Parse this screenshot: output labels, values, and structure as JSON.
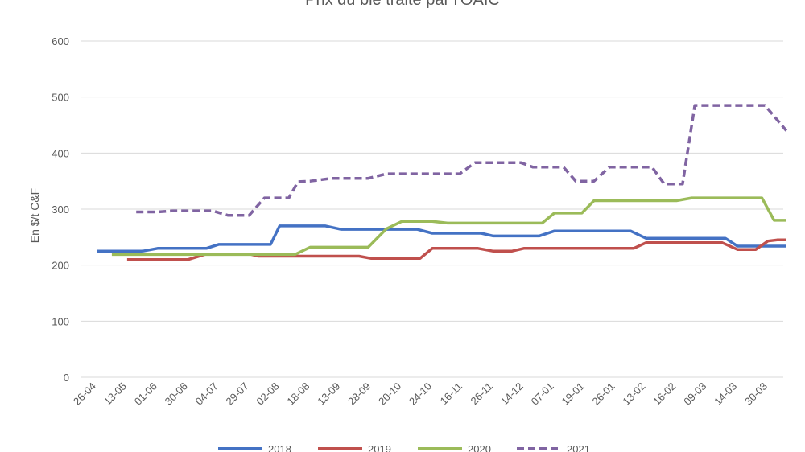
{
  "chart_data": {
    "type": "line",
    "title": "Prix du blé traité par l'OAIC",
    "xlabel": "",
    "ylabel": "En $/t C&F",
    "ylim": [
      0,
      600
    ],
    "yticks": [
      0,
      100,
      200,
      300,
      400,
      500,
      600
    ],
    "grid": true,
    "legend_position": "bottom",
    "categories": [
      "26-04",
      "13-05",
      "01-06",
      "30-06",
      "04-07",
      "29-07",
      "02-08",
      "18-08",
      "13-09",
      "28-09",
      "20-10",
      "24-10",
      "16-11",
      "26-11",
      "14-12",
      "07-01",
      "19-01",
      "26-01",
      "13-02",
      "16-02",
      "09-03",
      "14-03",
      "30-03"
    ],
    "series": [
      {
        "name": "2018",
        "color": "#4472C4",
        "dashed": false,
        "points": [
          [
            0,
            225
          ],
          [
            1.5,
            225
          ],
          [
            2,
            230
          ],
          [
            3.6,
            230
          ],
          [
            4,
            237
          ],
          [
            5.7,
            237
          ],
          [
            6,
            270
          ],
          [
            7.5,
            270
          ],
          [
            8,
            264
          ],
          [
            10.5,
            264
          ],
          [
            11,
            257
          ],
          [
            12.6,
            257
          ],
          [
            13,
            252
          ],
          [
            14.5,
            252
          ],
          [
            15,
            261
          ],
          [
            17.5,
            261
          ],
          [
            18,
            248
          ],
          [
            20.6,
            248
          ],
          [
            21,
            234
          ],
          [
            22.6,
            234
          ]
        ]
      },
      {
        "name": "2019",
        "color": "#C0504D",
        "dashed": false,
        "points": [
          [
            1,
            210
          ],
          [
            3,
            210
          ],
          [
            3.6,
            220
          ],
          [
            5,
            220
          ],
          [
            5.3,
            216
          ],
          [
            8.6,
            216
          ],
          [
            9,
            212
          ],
          [
            10.6,
            212
          ],
          [
            11,
            230
          ],
          [
            12.5,
            230
          ],
          [
            13,
            225
          ],
          [
            13.6,
            225
          ],
          [
            14,
            230
          ],
          [
            17.6,
            230
          ],
          [
            18,
            240
          ],
          [
            20.5,
            240
          ],
          [
            21,
            228
          ],
          [
            21.6,
            228
          ],
          [
            22,
            243
          ],
          [
            22.3,
            245
          ],
          [
            22.6,
            245
          ]
        ]
      },
      {
        "name": "2020",
        "color": "#9BBB59",
        "dashed": false,
        "points": [
          [
            0.5,
            219
          ],
          [
            6.5,
            219
          ],
          [
            7,
            232
          ],
          [
            8.9,
            232
          ],
          [
            9.5,
            265
          ],
          [
            10,
            278
          ],
          [
            11,
            278
          ],
          [
            11.5,
            275
          ],
          [
            14.6,
            275
          ],
          [
            15,
            293
          ],
          [
            15.9,
            293
          ],
          [
            16.3,
            315
          ],
          [
            19,
            315
          ],
          [
            19.5,
            320
          ],
          [
            21.8,
            320
          ],
          [
            22.2,
            280
          ],
          [
            22.6,
            280
          ]
        ]
      },
      {
        "name": "2021",
        "color": "#8064A2",
        "dashed": true,
        "points": [
          [
            1.3,
            295
          ],
          [
            2,
            295
          ],
          [
            2.5,
            297
          ],
          [
            3.8,
            297
          ],
          [
            4.3,
            289
          ],
          [
            5,
            289
          ],
          [
            5.5,
            320
          ],
          [
            6.3,
            320
          ],
          [
            6.6,
            349
          ],
          [
            7,
            350
          ],
          [
            7.7,
            355
          ],
          [
            8.9,
            355
          ],
          [
            9.5,
            363
          ],
          [
            11.9,
            363
          ],
          [
            12.4,
            383
          ],
          [
            13.9,
            383
          ],
          [
            14.3,
            375
          ],
          [
            15.3,
            375
          ],
          [
            15.7,
            350
          ],
          [
            16.3,
            350
          ],
          [
            16.8,
            375
          ],
          [
            18.2,
            375
          ],
          [
            18.6,
            345
          ],
          [
            19.2,
            345
          ],
          [
            19.6,
            485
          ],
          [
            21.9,
            485
          ],
          [
            22.6,
            440
          ]
        ]
      }
    ]
  }
}
